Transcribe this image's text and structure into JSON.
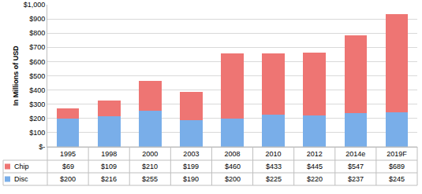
{
  "chart_data": {
    "type": "bar",
    "stacked": true,
    "grid": true,
    "y_label": "In Millions of USD",
    "categories": [
      "1995",
      "1998",
      "2000",
      "2003",
      "2008",
      "2010",
      "2012",
      "2014e",
      "2019F"
    ],
    "ylim": [
      0,
      1000
    ],
    "yticks": [
      {
        "value": 0,
        "label": "$-"
      },
      {
        "value": 100,
        "label": "$100"
      },
      {
        "value": 200,
        "label": "$200"
      },
      {
        "value": 300,
        "label": "$300"
      },
      {
        "value": 400,
        "label": "$400"
      },
      {
        "value": 500,
        "label": "$500"
      },
      {
        "value": 600,
        "label": "$600"
      },
      {
        "value": 700,
        "label": "$700"
      },
      {
        "value": 800,
        "label": "$800"
      },
      {
        "value": 900,
        "label": "$900"
      },
      {
        "value": 1000,
        "label": "$1,000"
      }
    ],
    "series": [
      {
        "name": "Chip",
        "color": "#ee7573",
        "values": [
          69,
          109,
          210,
          199,
          460,
          433,
          445,
          547,
          689
        ],
        "value_labels": [
          "$69",
          "$109",
          "$210",
          "$199",
          "$460",
          "$433",
          "$445",
          "$547",
          "$689"
        ]
      },
      {
        "name": "Disc",
        "color": "#79aee9",
        "values": [
          200,
          216,
          255,
          190,
          200,
          225,
          220,
          237,
          245
        ],
        "value_labels": [
          "$200",
          "$216",
          "$255",
          "$190",
          "$200",
          "$225",
          "$220",
          "$237",
          "$245"
        ]
      }
    ]
  }
}
